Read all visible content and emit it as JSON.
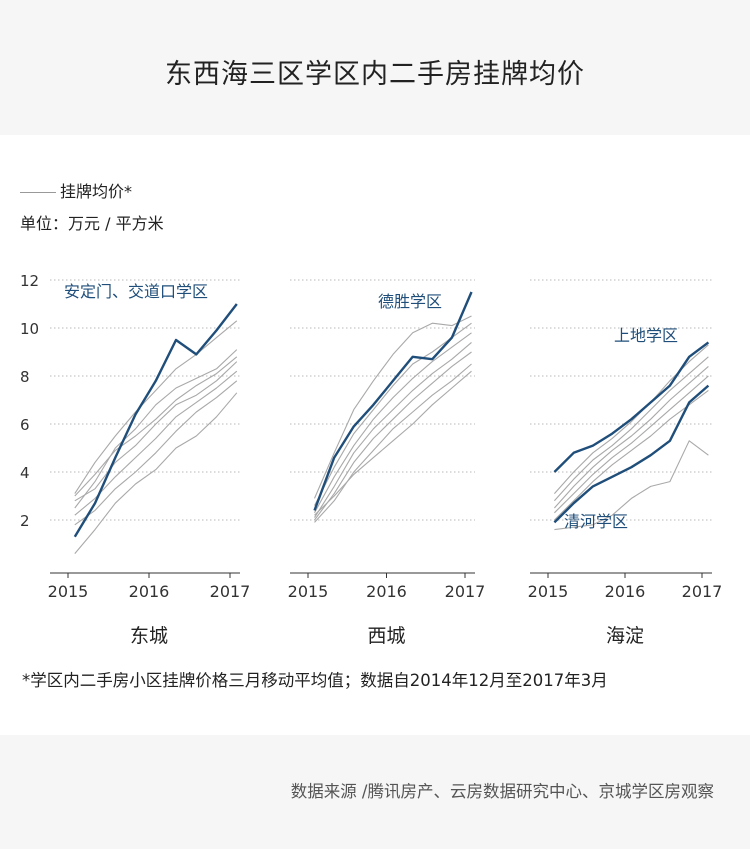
{
  "title": "东西海三区学区内二手房挂牌均价",
  "legend_label": "挂牌均价*",
  "unit_label": "单位：万元 / 平方米",
  "footnote": "*学区内二手房小区挂牌价格三月移动平均值；数据自2014年12月至2017年3月",
  "source": "数据来源 /腾讯房产、云房数据研究中心、京城学区房观察",
  "colors": {
    "highlight": "#1f4e7a",
    "other": "#a9a9a9",
    "grid": "#b9b9b9",
    "background": "#f6f6f6"
  },
  "chart_data": [
    {
      "type": "line",
      "name": "东城",
      "x_ticks": [
        "2015",
        "2016",
        "2017"
      ],
      "ylim": [
        0,
        12
      ],
      "y_ticks": [
        2,
        4,
        6,
        8,
        10,
        12
      ],
      "x": [
        "2015-02",
        "2015-05",
        "2015-08",
        "2015-11",
        "2016-02",
        "2016-05",
        "2016-08",
        "2016-11",
        "2017-02"
      ],
      "series": [
        {
          "name": "安定门、交道口学区",
          "highlight": true,
          "values": [
            1.3,
            2.7,
            4.6,
            6.4,
            7.8,
            9.5,
            8.9,
            9.9,
            11.0
          ]
        },
        {
          "highlight": false,
          "values": [
            2.5,
            3.6,
            5.0,
            5.8,
            6.8,
            7.5,
            7.9,
            8.3,
            9.1
          ]
        },
        {
          "highlight": false,
          "values": [
            3.0,
            3.9,
            4.9,
            5.5,
            6.2,
            7.0,
            7.6,
            8.1,
            8.8
          ]
        },
        {
          "highlight": false,
          "values": [
            2.8,
            3.3,
            4.4,
            5.1,
            6.0,
            6.8,
            7.2,
            7.8,
            8.6
          ]
        },
        {
          "highlight": false,
          "values": [
            2.2,
            2.9,
            3.8,
            4.6,
            5.4,
            6.3,
            6.9,
            7.5,
            8.2
          ]
        },
        {
          "highlight": false,
          "values": [
            1.8,
            2.4,
            3.3,
            4.0,
            4.8,
            5.7,
            6.5,
            7.1,
            7.8
          ]
        },
        {
          "highlight": false,
          "values": [
            0.6,
            1.6,
            2.7,
            3.5,
            4.1,
            5.0,
            5.5,
            6.3,
            7.3
          ]
        },
        {
          "highlight": false,
          "values": [
            3.1,
            4.4,
            5.5,
            6.5,
            7.4,
            8.3,
            8.9,
            9.6,
            10.3
          ]
        }
      ]
    },
    {
      "type": "line",
      "name": "西城",
      "x_ticks": [
        "2015",
        "2016",
        "2017"
      ],
      "ylim": [
        0,
        12
      ],
      "y_ticks": [
        2,
        4,
        6,
        8,
        10,
        12
      ],
      "x": [
        "2015-02",
        "2015-05",
        "2015-08",
        "2015-11",
        "2016-02",
        "2016-05",
        "2016-08",
        "2016-11",
        "2017-02"
      ],
      "series": [
        {
          "name": "德胜学区",
          "highlight": true,
          "values": [
            2.4,
            4.6,
            5.9,
            6.8,
            7.8,
            8.8,
            8.7,
            9.6,
            11.5
          ]
        },
        {
          "highlight": false,
          "values": [
            2.9,
            4.8,
            6.6,
            7.8,
            8.9,
            9.8,
            10.2,
            10.1,
            10.5
          ]
        },
        {
          "highlight": false,
          "values": [
            2.6,
            4.2,
            5.6,
            6.6,
            7.6,
            8.5,
            9.0,
            9.6,
            10.2
          ]
        },
        {
          "highlight": false,
          "values": [
            2.3,
            3.8,
            5.1,
            6.2,
            7.1,
            7.9,
            8.6,
            9.2,
            9.8
          ]
        },
        {
          "highlight": false,
          "values": [
            2.1,
            3.4,
            4.8,
            5.8,
            6.6,
            7.4,
            8.1,
            8.7,
            9.4
          ]
        },
        {
          "highlight": false,
          "values": [
            2.0,
            3.1,
            4.4,
            5.4,
            6.2,
            7.0,
            7.7,
            8.4,
            9.0
          ]
        },
        {
          "highlight": false,
          "values": [
            1.9,
            2.8,
            4.0,
            4.9,
            5.8,
            6.5,
            7.2,
            7.8,
            8.5
          ]
        },
        {
          "highlight": false,
          "values": [
            2.2,
            3.0,
            3.9,
            4.6,
            5.3,
            6.0,
            6.8,
            7.5,
            8.2
          ]
        }
      ]
    },
    {
      "type": "line",
      "name": "海淀",
      "x_ticks": [
        "2015",
        "2016",
        "2017"
      ],
      "ylim": [
        0,
        12
      ],
      "y_ticks": [
        2,
        4,
        6,
        8,
        10,
        12
      ],
      "x": [
        "2015-02",
        "2015-05",
        "2015-08",
        "2015-11",
        "2016-02",
        "2016-05",
        "2016-08",
        "2016-11",
        "2017-02"
      ],
      "series": [
        {
          "name": "上地学区",
          "highlight": true,
          "values": [
            4.0,
            4.8,
            5.1,
            5.6,
            6.2,
            6.9,
            7.6,
            8.8,
            9.4
          ]
        },
        {
          "name": "清河学区",
          "highlight": true,
          "values": [
            1.9,
            2.7,
            3.4,
            3.8,
            4.2,
            4.7,
            5.3,
            6.9,
            7.6
          ]
        },
        {
          "highlight": false,
          "values": [
            3.1,
            4.0,
            4.8,
            5.4,
            6.1,
            6.9,
            7.8,
            8.6,
            9.3
          ]
        },
        {
          "highlight": false,
          "values": [
            2.8,
            3.7,
            4.5,
            5.1,
            5.8,
            6.6,
            7.4,
            8.1,
            8.8
          ]
        },
        {
          "highlight": false,
          "values": [
            2.5,
            3.4,
            4.2,
            4.9,
            5.5,
            6.2,
            7.0,
            7.7,
            8.4
          ]
        },
        {
          "highlight": false,
          "values": [
            2.3,
            3.1,
            3.9,
            4.6,
            5.2,
            5.9,
            6.6,
            7.3,
            8.0
          ]
        },
        {
          "highlight": false,
          "values": [
            2.0,
            2.8,
            3.6,
            4.3,
            4.9,
            5.5,
            6.2,
            6.8,
            7.4
          ]
        },
        {
          "highlight": false,
          "values": [
            1.6,
            1.7,
            1.8,
            2.2,
            2.9,
            3.4,
            3.6,
            5.3,
            4.7
          ]
        }
      ]
    }
  ]
}
